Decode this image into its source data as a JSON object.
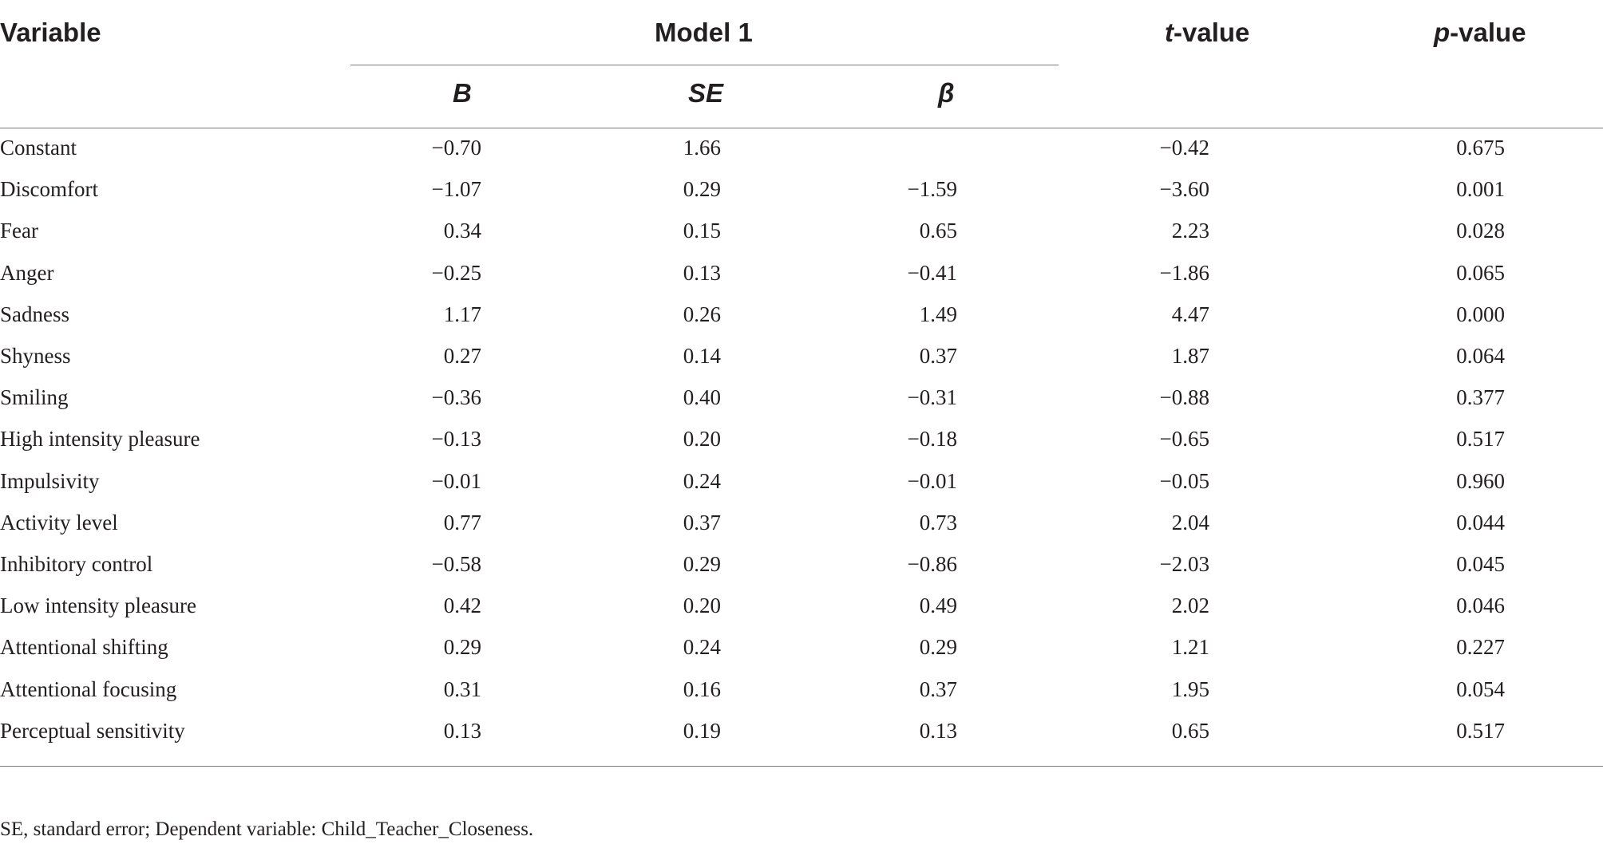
{
  "header": {
    "variable": "Variable",
    "model": "Model 1",
    "t_italic": "t",
    "t_rest": "-value",
    "p_italic": "p",
    "p_rest": "-value",
    "sub_b": "B",
    "sub_se": "SE",
    "sub_beta": "β"
  },
  "rows": [
    {
      "variable": "Constant",
      "B": "−0.70",
      "SE": "1.66",
      "beta": "",
      "t": "−0.42",
      "p": "0.675"
    },
    {
      "variable": "Discomfort",
      "B": "−1.07",
      "SE": "0.29",
      "beta": "−1.59",
      "t": "−3.60",
      "p": "0.001"
    },
    {
      "variable": "Fear",
      "B": "0.34",
      "SE": "0.15",
      "beta": "0.65",
      "t": "2.23",
      "p": "0.028"
    },
    {
      "variable": "Anger",
      "B": "−0.25",
      "SE": "0.13",
      "beta": "−0.41",
      "t": "−1.86",
      "p": "0.065"
    },
    {
      "variable": "Sadness",
      "B": "1.17",
      "SE": "0.26",
      "beta": "1.49",
      "t": "4.47",
      "p": "0.000"
    },
    {
      "variable": "Shyness",
      "B": "0.27",
      "SE": "0.14",
      "beta": "0.37",
      "t": "1.87",
      "p": "0.064"
    },
    {
      "variable": "Smiling",
      "B": "−0.36",
      "SE": "0.40",
      "beta": "−0.31",
      "t": "−0.88",
      "p": "0.377"
    },
    {
      "variable": "High intensity pleasure",
      "B": "−0.13",
      "SE": "0.20",
      "beta": "−0.18",
      "t": "−0.65",
      "p": "0.517"
    },
    {
      "variable": "Impulsivity",
      "B": "−0.01",
      "SE": "0.24",
      "beta": "−0.01",
      "t": "−0.05",
      "p": "0.960"
    },
    {
      "variable": "Activity level",
      "B": "0.77",
      "SE": "0.37",
      "beta": "0.73",
      "t": "2.04",
      "p": "0.044"
    },
    {
      "variable": "Inhibitory control",
      "B": "−0.58",
      "SE": "0.29",
      "beta": "−0.86",
      "t": "−2.03",
      "p": "0.045"
    },
    {
      "variable": "Low intensity pleasure",
      "B": "0.42",
      "SE": "0.20",
      "beta": "0.49",
      "t": "2.02",
      "p": "0.046"
    },
    {
      "variable": "Attentional shifting",
      "B": "0.29",
      "SE": "0.24",
      "beta": "0.29",
      "t": "1.21",
      "p": "0.227"
    },
    {
      "variable": "Attentional focusing",
      "B": "0.31",
      "SE": "0.16",
      "beta": "0.37",
      "t": "1.95",
      "p": "0.054"
    },
    {
      "variable": "Perceptual sensitivity",
      "B": "0.13",
      "SE": "0.19",
      "beta": "0.13",
      "t": "0.65",
      "p": "0.517"
    }
  ],
  "footnote": "SE, standard error; Dependent variable: Child_Teacher_Closeness.",
  "colors": {
    "text": "#231f20",
    "rule": "#7a7a7a"
  }
}
